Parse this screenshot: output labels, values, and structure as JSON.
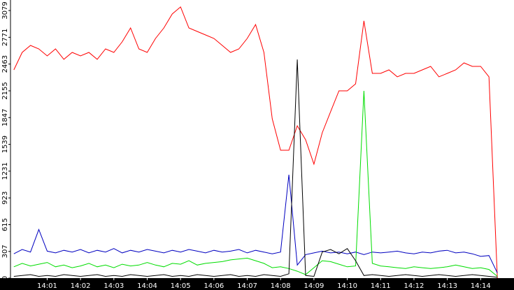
{
  "chart_data": {
    "type": "line",
    "x": [
      0,
      0.25,
      0.5,
      0.75,
      1,
      1.25,
      1.5,
      1.75,
      2,
      2.25,
      2.5,
      2.75,
      3,
      3.25,
      3.5,
      3.75,
      4,
      4.25,
      4.5,
      4.75,
      5,
      5.25,
      5.5,
      5.75,
      6,
      6.25,
      6.5,
      6.75,
      7,
      7.25,
      7.5,
      7.75,
      8,
      8.25,
      8.5,
      8.75,
      9,
      9.25,
      9.5,
      9.75,
      10,
      10.25,
      10.5,
      10.75,
      11,
      11.25,
      11.5,
      11.75,
      12,
      12.25,
      12.5,
      12.75,
      13,
      13.25,
      13.5,
      13.75,
      14,
      14.25,
      14.5
    ],
    "series": [
      {
        "color": "#ff0000",
        "values": [
          2396,
          2597,
          2677,
          2637,
          2557,
          2637,
          2517,
          2597,
          2557,
          2597,
          2517,
          2637,
          2597,
          2718,
          2878,
          2637,
          2597,
          2758,
          2878,
          3039,
          3120,
          2878,
          2838,
          2798,
          2758,
          2677,
          2597,
          2637,
          2758,
          2918,
          2597,
          1833,
          1471,
          1471,
          1753,
          1592,
          1311,
          1672,
          1914,
          2155,
          2155,
          2235,
          2960,
          2356,
          2356,
          2396,
          2316,
          2356,
          2356,
          2396,
          2436,
          2316,
          2356,
          2396,
          2476,
          2436,
          2436,
          2316,
          0
        ]
      },
      {
        "color": "#0000c0",
        "values": [
          280,
          330,
          300,
          560,
          310,
          290,
          320,
          300,
          330,
          290,
          320,
          300,
          340,
          290,
          320,
          300,
          330,
          310,
          290,
          320,
          300,
          330,
          310,
          290,
          320,
          300,
          310,
          330,
          290,
          320,
          300,
          280,
          300,
          1190,
          150,
          270,
          290,
          310,
          290,
          300,
          280,
          300,
          270,
          300,
          290,
          300,
          310,
          290,
          280,
          300,
          290,
          310,
          320,
          290,
          300,
          280,
          250,
          260,
          60
        ]
      },
      {
        "color": "#00dd00",
        "values": [
          130,
          170,
          140,
          160,
          180,
          130,
          150,
          120,
          140,
          170,
          130,
          150,
          120,
          160,
          140,
          150,
          180,
          150,
          130,
          170,
          160,
          200,
          150,
          170,
          180,
          190,
          210,
          220,
          230,
          200,
          170,
          120,
          130,
          110,
          80,
          40,
          120,
          200,
          190,
          160,
          130,
          140,
          2155,
          170,
          140,
          130,
          120,
          110,
          130,
          120,
          110,
          120,
          130,
          150,
          130,
          110,
          120,
          100,
          20
        ]
      },
      {
        "color": "#000000",
        "values": [
          20,
          30,
          40,
          20,
          30,
          20,
          40,
          30,
          20,
          30,
          40,
          20,
          30,
          20,
          40,
          30,
          20,
          30,
          40,
          20,
          30,
          20,
          40,
          30,
          20,
          30,
          40,
          20,
          30,
          20,
          40,
          30,
          20,
          50,
          2516,
          30,
          20,
          300,
          330,
          280,
          340,
          200,
          30,
          40,
          30,
          20,
          30,
          40,
          30,
          20,
          30,
          40,
          30,
          20,
          30,
          40,
          30,
          20,
          10
        ]
      }
    ],
    "xlim": [
      -0.1,
      15.0
    ],
    "xticks": [
      {
        "value": 1,
        "label": "14:01"
      },
      {
        "value": 2,
        "label": "14:02"
      },
      {
        "value": 3,
        "label": "14:03"
      },
      {
        "value": 4,
        "label": "14:04"
      },
      {
        "value": 5,
        "label": "14:05"
      },
      {
        "value": 6,
        "label": "14:06"
      },
      {
        "value": 7,
        "label": "14:07"
      },
      {
        "value": 8,
        "label": "14:08"
      },
      {
        "value": 9,
        "label": "14:09"
      },
      {
        "value": 10,
        "label": "14:10"
      },
      {
        "value": 11,
        "label": "14:11"
      },
      {
        "value": 12,
        "label": "14:12"
      },
      {
        "value": 13,
        "label": "14:13"
      },
      {
        "value": 14,
        "label": "14:14"
      }
    ],
    "ylim": [
      0,
      3200
    ],
    "yticks": [
      0,
      307,
      615,
      923,
      1231,
      1539,
      1847,
      2155,
      2463,
      2771,
      3079
    ]
  }
}
